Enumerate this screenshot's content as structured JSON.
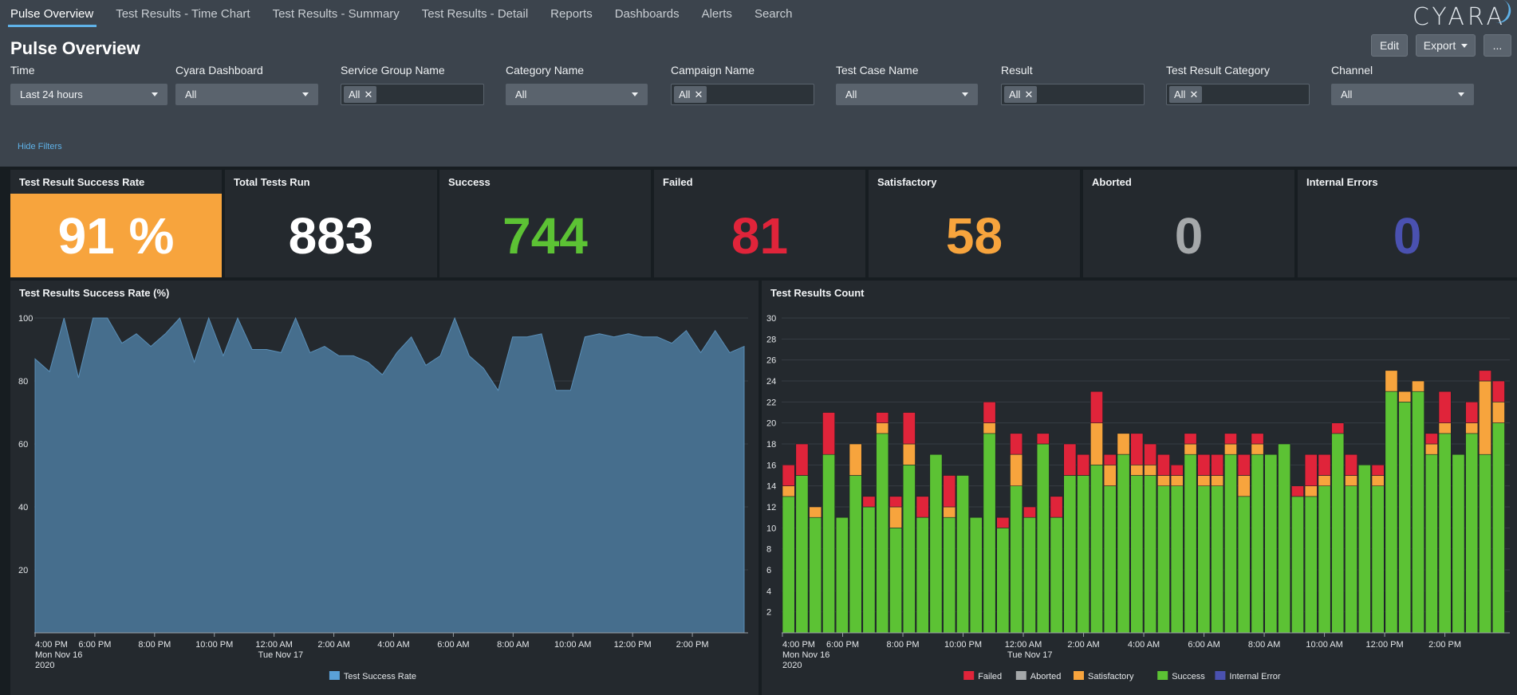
{
  "nav": {
    "tabs": [
      "Pulse Overview",
      "Test Results - Time Chart",
      "Test Results - Summary",
      "Test Results - Detail",
      "Reports",
      "Dashboards",
      "Alerts",
      "Search"
    ],
    "logo": "CYARA"
  },
  "page": {
    "title": "Pulse Overview",
    "buttons": {
      "edit": "Edit",
      "export": "Export",
      "more": "..."
    },
    "hide_filters": "Hide Filters"
  },
  "filters": [
    {
      "label": "Time",
      "type": "select",
      "value": "Last 24 hours"
    },
    {
      "label": "Cyara Dashboard",
      "type": "select",
      "value": "All"
    },
    {
      "label": "Service Group Name",
      "type": "multi",
      "value": "All"
    },
    {
      "label": "Category Name",
      "type": "select",
      "value": "All"
    },
    {
      "label": "Campaign Name",
      "type": "multi",
      "value": "All"
    },
    {
      "label": "Test Case Name",
      "type": "select",
      "value": "All"
    },
    {
      "label": "Result",
      "type": "multi",
      "value": "All"
    },
    {
      "label": "Test Result Category",
      "type": "multi",
      "value": "All"
    },
    {
      "label": "Channel",
      "type": "select",
      "value": "All"
    }
  ],
  "kpis": [
    {
      "title": "Test Result Success Rate",
      "value": "91 %",
      "color": "#ffffff"
    },
    {
      "title": "Total Tests Run",
      "value": "883",
      "color": "#ffffff"
    },
    {
      "title": "Success",
      "value": "744",
      "color": "#5cc234"
    },
    {
      "title": "Failed",
      "value": "81",
      "color": "#e0243a"
    },
    {
      "title": "Satisfactory",
      "value": "58",
      "color": "#f7a43d"
    },
    {
      "title": "Aborted",
      "value": "0",
      "color": "#a5a8aa"
    },
    {
      "title": "Internal Errors",
      "value": "0",
      "color": "#4a51b0"
    }
  ],
  "chart_data": [
    {
      "type": "area",
      "title": "Test Results Success Rate (%)",
      "ylim": [
        0,
        100
      ],
      "yticks": [
        20,
        40,
        60,
        80,
        100
      ],
      "grid": true,
      "legend": "bottom",
      "xticks": [
        {
          "label": "4:00 PM",
          "sub": [
            "Mon Nov 16",
            "2020"
          ]
        },
        {
          "label": "6:00 PM"
        },
        {
          "label": "8:00 PM"
        },
        {
          "label": "10:00 PM"
        },
        {
          "label": "12:00 AM",
          "sub": [
            "Tue Nov 17"
          ]
        },
        {
          "label": "2:00 AM"
        },
        {
          "label": "4:00 AM"
        },
        {
          "label": "6:00 AM"
        },
        {
          "label": "8:00 AM"
        },
        {
          "label": "10:00 AM"
        },
        {
          "label": "12:00 PM"
        },
        {
          "label": "2:00 PM"
        }
      ],
      "series": [
        {
          "name": "Test Success Rate",
          "color": "#5aa1d8",
          "values": [
            87,
            83,
            100,
            81,
            100,
            100,
            92,
            95,
            91,
            95,
            100,
            86,
            100,
            88,
            100,
            90,
            90,
            89,
            100,
            89,
            91,
            88,
            88,
            86,
            82,
            89,
            94,
            85,
            88,
            100,
            88,
            84,
            77,
            94,
            94,
            95,
            77,
            77,
            94,
            95,
            94,
            95,
            94,
            94,
            92,
            96,
            89,
            96,
            89,
            91
          ]
        }
      ]
    },
    {
      "type": "bar",
      "stacked": true,
      "title": "Test Results Count",
      "ylim": [
        0,
        30
      ],
      "yticks": [
        2,
        4,
        6,
        8,
        10,
        12,
        14,
        16,
        18,
        20,
        22,
        24,
        26,
        28,
        30
      ],
      "grid": true,
      "legend": "bottom",
      "xticks": [
        {
          "label": "4:00 PM",
          "sub": [
            "Mon Nov 16",
            "2020"
          ]
        },
        {
          "label": "6:00 PM"
        },
        {
          "label": "8:00 PM"
        },
        {
          "label": "10:00 PM"
        },
        {
          "label": "12:00 AM",
          "sub": [
            "Tue Nov 17"
          ]
        },
        {
          "label": "2:00 AM"
        },
        {
          "label": "4:00 AM"
        },
        {
          "label": "6:00 AM"
        },
        {
          "label": "8:00 AM"
        },
        {
          "label": "10:00 AM"
        },
        {
          "label": "12:00 PM"
        },
        {
          "label": "2:00 PM"
        }
      ],
      "series": [
        {
          "name": "Failed",
          "color": "#e0243a",
          "values": [
            2,
            3,
            0,
            4,
            0,
            0,
            1,
            1,
            1,
            3,
            2,
            0,
            3,
            0,
            0,
            2,
            1,
            2,
            1,
            1,
            2,
            3,
            2,
            3,
            1,
            0,
            3,
            2,
            2,
            1,
            1,
            2,
            2,
            1,
            2,
            1,
            0,
            0,
            1,
            3,
            2,
            1,
            2,
            0,
            1,
            0,
            0,
            0,
            1,
            3,
            0,
            2,
            1,
            2
          ]
        },
        {
          "name": "Aborted",
          "color": "#a5a8aa",
          "values": [
            0,
            0,
            0,
            0,
            0,
            0,
            0,
            0,
            0,
            0,
            0,
            0,
            0,
            0,
            0,
            0,
            0,
            0,
            0,
            0,
            0,
            0,
            0,
            0,
            0,
            0,
            0,
            0,
            0,
            0,
            0,
            0,
            0,
            0,
            0,
            0,
            0,
            0,
            0,
            0,
            0,
            0,
            0,
            0,
            0,
            0,
            0,
            0,
            0,
            0,
            0,
            0,
            0,
            0
          ]
        },
        {
          "name": "Satisfactory",
          "color": "#f7a43d",
          "values": [
            1,
            0,
            1,
            0,
            0,
            3,
            0,
            1,
            2,
            2,
            0,
            0,
            1,
            0,
            0,
            1,
            0,
            3,
            0,
            0,
            0,
            0,
            0,
            4,
            2,
            2,
            1,
            1,
            1,
            1,
            1,
            1,
            1,
            1,
            2,
            1,
            0,
            0,
            0,
            1,
            1,
            0,
            1,
            0,
            1,
            2,
            1,
            1,
            1,
            1,
            0,
            1,
            7,
            2
          ]
        },
        {
          "name": "Success",
          "color": "#5cc234",
          "values": [
            13,
            15,
            11,
            17,
            11,
            15,
            12,
            19,
            10,
            16,
            11,
            17,
            11,
            15,
            11,
            19,
            10,
            14,
            11,
            18,
            11,
            15,
            15,
            16,
            14,
            17,
            15,
            15,
            14,
            14,
            17,
            14,
            14,
            17,
            13,
            17,
            17,
            18,
            13,
            13,
            14,
            19,
            14,
            16,
            14,
            23,
            22,
            23,
            17,
            19,
            17,
            19,
            17,
            20
          ]
        },
        {
          "name": "Internal Error",
          "color": "#4a51b0",
          "values": [
            0,
            0,
            0,
            0,
            0,
            0,
            0,
            0,
            0,
            0,
            0,
            0,
            0,
            0,
            0,
            0,
            0,
            0,
            0,
            0,
            0,
            0,
            0,
            0,
            0,
            0,
            0,
            0,
            0,
            0,
            0,
            0,
            0,
            0,
            0,
            0,
            0,
            0,
            0,
            0,
            0,
            0,
            0,
            0,
            0,
            0,
            0,
            0,
            0,
            0,
            0,
            0,
            0,
            0
          ]
        }
      ]
    }
  ]
}
